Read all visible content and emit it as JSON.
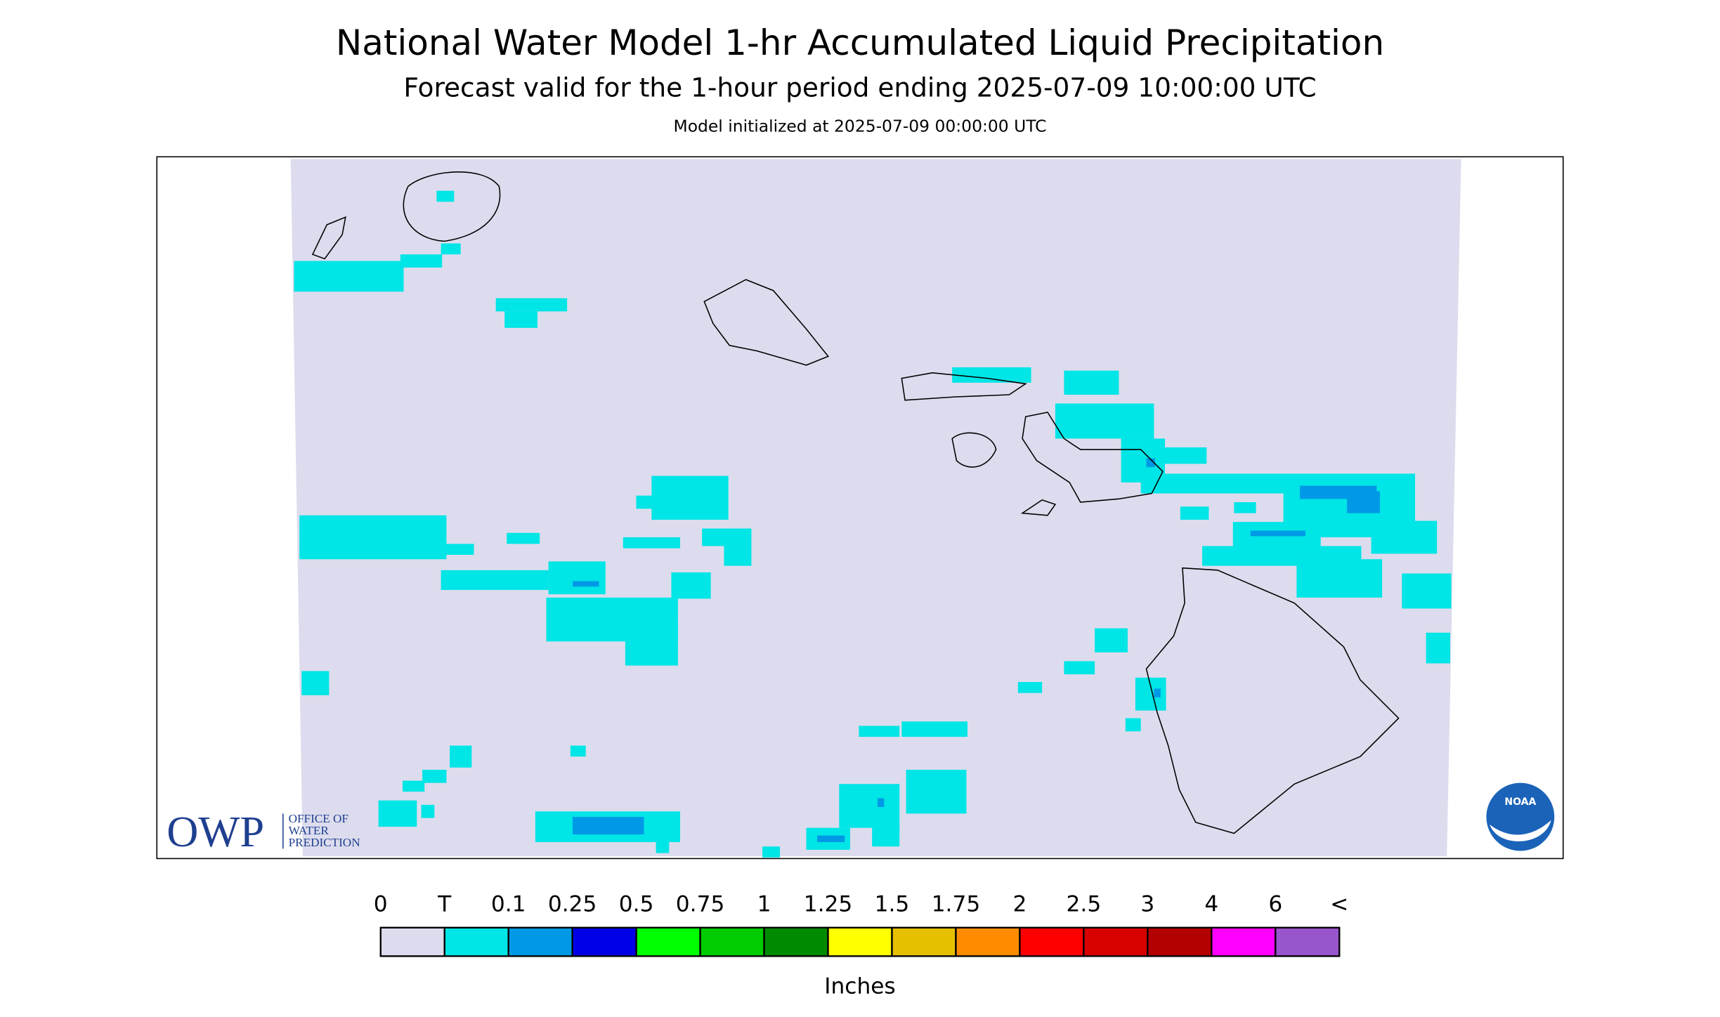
{
  "header": {
    "title": "National Water Model 1-hr Accumulated Liquid Precipitation",
    "subtitle": "Forecast valid for the 1-hour period ending 2025-07-09 10:00:00 UTC",
    "init": "Model initialized at 2025-07-09 00:00:00 UTC"
  },
  "legend": {
    "labels": [
      "0",
      "T",
      "0.1",
      "0.25",
      "0.5",
      "0.75",
      "1",
      "1.25",
      "1.5",
      "1.75",
      "2",
      "2.5",
      "3",
      "4",
      "6",
      "<"
    ],
    "colors": [
      "#dcdcee",
      "#00e5e5",
      "#0099e6",
      "#0000e6",
      "#00ff00",
      "#00cc00",
      "#008a00",
      "#ffff00",
      "#e6c000",
      "#ff8c00",
      "#ff0000",
      "#d90000",
      "#b30000",
      "#ff00ff",
      "#9955cc"
    ],
    "unit": "Inches"
  },
  "logos": {
    "owp": "OWP",
    "owp_lines": [
      "OFFICE OF",
      "WATER",
      "PREDICTION"
    ],
    "noaa": "NOAA"
  }
}
